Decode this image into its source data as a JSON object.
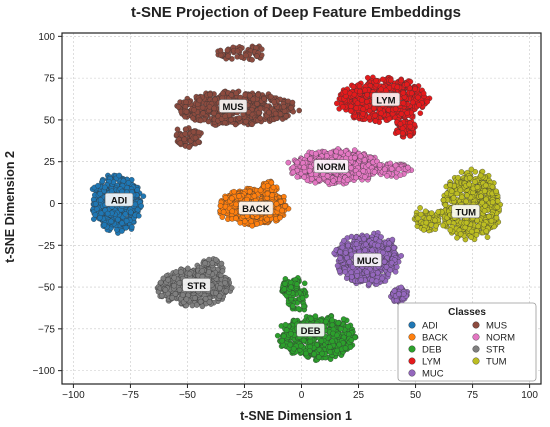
{
  "chart_data": {
    "type": "scatter",
    "title": "t-SNE Projection of Deep Feature Embeddings",
    "xlabel": "t-SNE Dimension 1",
    "ylabel": "t-SNE Dimension 2",
    "xlim": [
      -105,
      105
    ],
    "ylim": [
      -108,
      102
    ],
    "xticks": [
      -100,
      -75,
      -50,
      -25,
      0,
      25,
      50,
      75,
      100
    ],
    "yticks": [
      -100,
      -75,
      -50,
      -25,
      0,
      25,
      50,
      75,
      100
    ],
    "grid": true,
    "legend": {
      "title": "Classes",
      "placement": "bottom-right",
      "columns": 2
    },
    "series": [
      {
        "name": "ADI",
        "color": "#1f77b4",
        "label_at": [
          -80,
          2
        ],
        "region": {
          "center": [
            -81,
            0
          ],
          "spread": [
            11,
            17
          ],
          "extra": []
        }
      },
      {
        "name": "BACK",
        "color": "#ff7f0e",
        "label_at": [
          -20,
          -3
        ],
        "region": {
          "center": [
            -21,
            -2
          ],
          "spread": [
            15,
            11
          ],
          "extra": [
            [
              -14,
              8,
              4,
              5
            ]
          ]
        }
      },
      {
        "name": "DEB",
        "color": "#2ca02c",
        "label_at": [
          4,
          -76
        ],
        "region": {
          "center": [
            7,
            -80
          ],
          "spread": [
            17,
            13
          ],
          "extra": [
            [
              -2,
              -55,
              5,
              10
            ],
            [
              -5,
              -50,
              4,
              6
            ]
          ]
        }
      },
      {
        "name": "LYM",
        "color": "#e41a1c",
        "label_at": [
          37,
          62
        ],
        "region": {
          "center": [
            36,
            62
          ],
          "spread": [
            20,
            13
          ],
          "extra": [
            [
              45,
              45,
              5,
              6
            ]
          ]
        }
      },
      {
        "name": "MUC",
        "color": "#9467bd",
        "label_at": [
          29,
          -34
        ],
        "region": {
          "center": [
            29,
            -33
          ],
          "spread": [
            14,
            15
          ],
          "extra": [
            [
              43,
              -55,
              4,
              5
            ]
          ]
        }
      },
      {
        "name": "MUS",
        "color": "#8c4b3f",
        "label_at": [
          -30,
          58
        ],
        "region": {
          "center": [
            -29,
            57
          ],
          "spread": [
            26,
            10
          ],
          "extra": [
            [
              -26,
              90,
              11,
              5
            ],
            [
              -50,
              40,
              6,
              6
            ]
          ]
        }
      },
      {
        "name": "NORM",
        "color": "#e377c2",
        "label_at": [
          13,
          22
        ],
        "region": {
          "center": [
            15,
            22
          ],
          "spread": [
            20,
            10
          ],
          "extra": [
            [
              40,
              20,
              8,
              4
            ]
          ]
        }
      },
      {
        "name": "STR",
        "color": "#7f7f7f",
        "label_at": [
          -46,
          -49
        ],
        "region": {
          "center": [
            -47,
            -50
          ],
          "spread": [
            16,
            11
          ],
          "extra": [
            [
              -40,
              -38,
              6,
              5
            ]
          ]
        }
      },
      {
        "name": "TUM",
        "color": "#bcbd22",
        "label_at": [
          72,
          -5
        ],
        "region": {
          "center": [
            74,
            -2
          ],
          "spread": [
            13,
            21
          ],
          "extra": [
            [
              55,
              -10,
              6,
              8
            ]
          ]
        }
      }
    ]
  }
}
